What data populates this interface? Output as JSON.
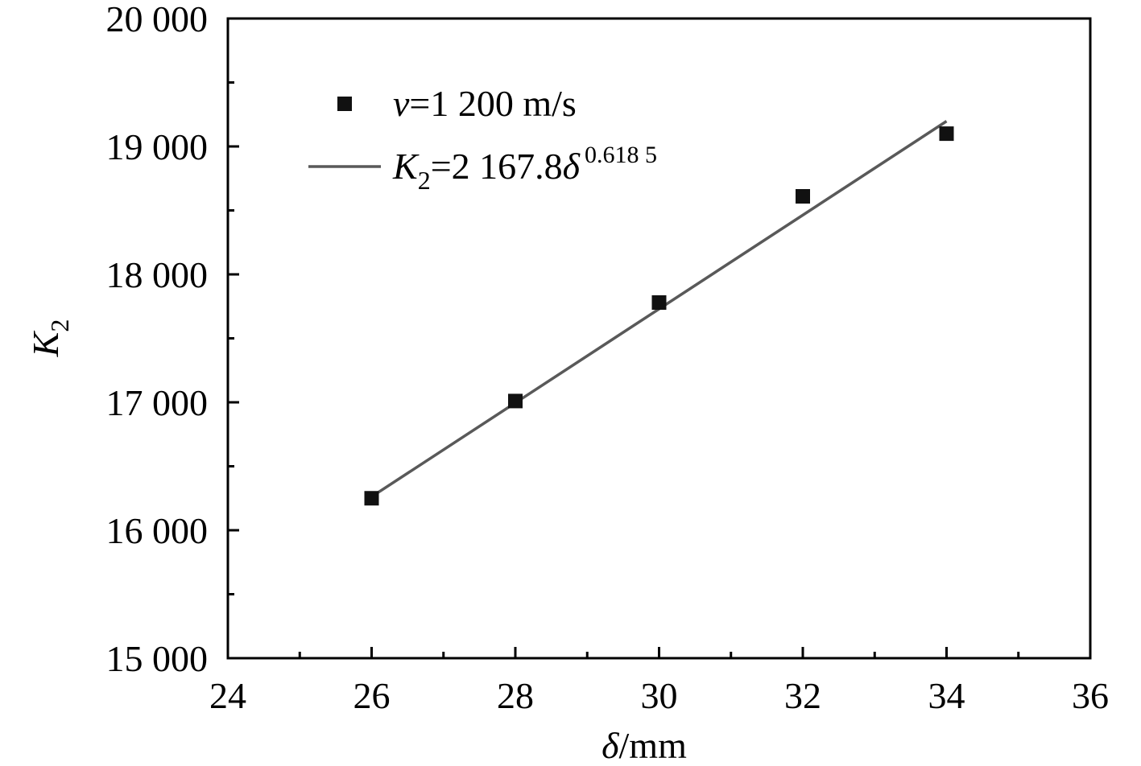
{
  "chart_data": {
    "type": "scatter",
    "xlabel": {
      "symbol": "δ",
      "unit": "/mm"
    },
    "ylabel": {
      "symbol": "K",
      "subscript": "2"
    },
    "xlim": [
      24,
      36
    ],
    "ylim": [
      15000,
      20000
    ],
    "x_ticks": [
      24,
      26,
      28,
      30,
      32,
      34,
      36
    ],
    "x_tick_labels": [
      "24",
      "26",
      "28",
      "30",
      "32",
      "34",
      "36"
    ],
    "y_ticks": [
      15000,
      16000,
      17000,
      18000,
      19000,
      20000
    ],
    "y_tick_labels": [
      "15 000",
      "16 000",
      "17 000",
      "18 000",
      "19 000",
      "20 000"
    ],
    "x_minor_step": 1,
    "y_minor_step": 500,
    "grid": false,
    "legend_position": "top-left",
    "series": [
      {
        "name": "v=1 200 m/s",
        "name_parts": {
          "symbol": "v",
          "rest": "=1 200 m/s"
        },
        "kind": "scatter",
        "marker": "square",
        "color": "#111111",
        "x": [
          26,
          28,
          30,
          32,
          34
        ],
        "y": [
          16250,
          17010,
          17780,
          18610,
          19100
        ]
      },
      {
        "name": "K2=2 167.8δ^0.618 5",
        "name_parts": {
          "symbol": "K",
          "subscript": "2",
          "rest": "=2 167.8",
          "var": "δ",
          "superscript": "0.618 5"
        },
        "kind": "line",
        "color": "#595959",
        "fit": {
          "coefficient": 2167.8,
          "exponent": 0.6185
        },
        "x_range": [
          26,
          34
        ]
      }
    ]
  }
}
